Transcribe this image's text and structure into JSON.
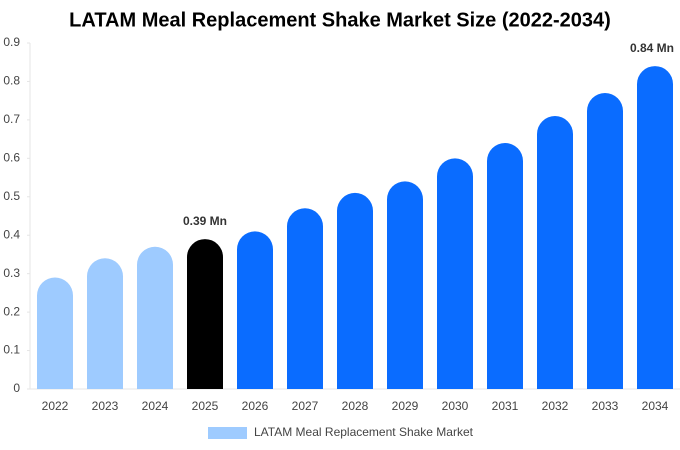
{
  "chart_data": {
    "type": "bar",
    "title": "LATAM Meal Replacement Shake Market Size (2022-2034)",
    "categories": [
      "2022",
      "2023",
      "2024",
      "2025",
      "2026",
      "2027",
      "2028",
      "2029",
      "2030",
      "2031",
      "2032",
      "2033",
      "2034"
    ],
    "series": [
      {
        "name": "LATAM Meal Replacement Shake Market",
        "color": "#9ecbff",
        "values": [
          0.29,
          0.34,
          0.37,
          0.39,
          0.41,
          0.47,
          0.51,
          0.54,
          0.6,
          0.64,
          0.71,
          0.77,
          0.84
        ],
        "value_labels": [
          null,
          null,
          null,
          "0.39 Mn",
          null,
          null,
          null,
          null,
          null,
          null,
          null,
          null,
          "0.84 Mn"
        ],
        "colors": [
          "#9ecbff",
          "#9ecbff",
          "#9ecbff",
          "#000000",
          "#0a6cff",
          "#0a6cff",
          "#0a6cff",
          "#0a6cff",
          "#0a6cff",
          "#0a6cff",
          "#0a6cff",
          "#0a6cff",
          "#0a6cff"
        ]
      }
    ],
    "ylim": [
      0,
      0.9
    ],
    "yticks": [
      0,
      0.1,
      0.2,
      0.3,
      0.4,
      0.5,
      0.6,
      0.7,
      0.8,
      0.9
    ],
    "grid": false
  }
}
